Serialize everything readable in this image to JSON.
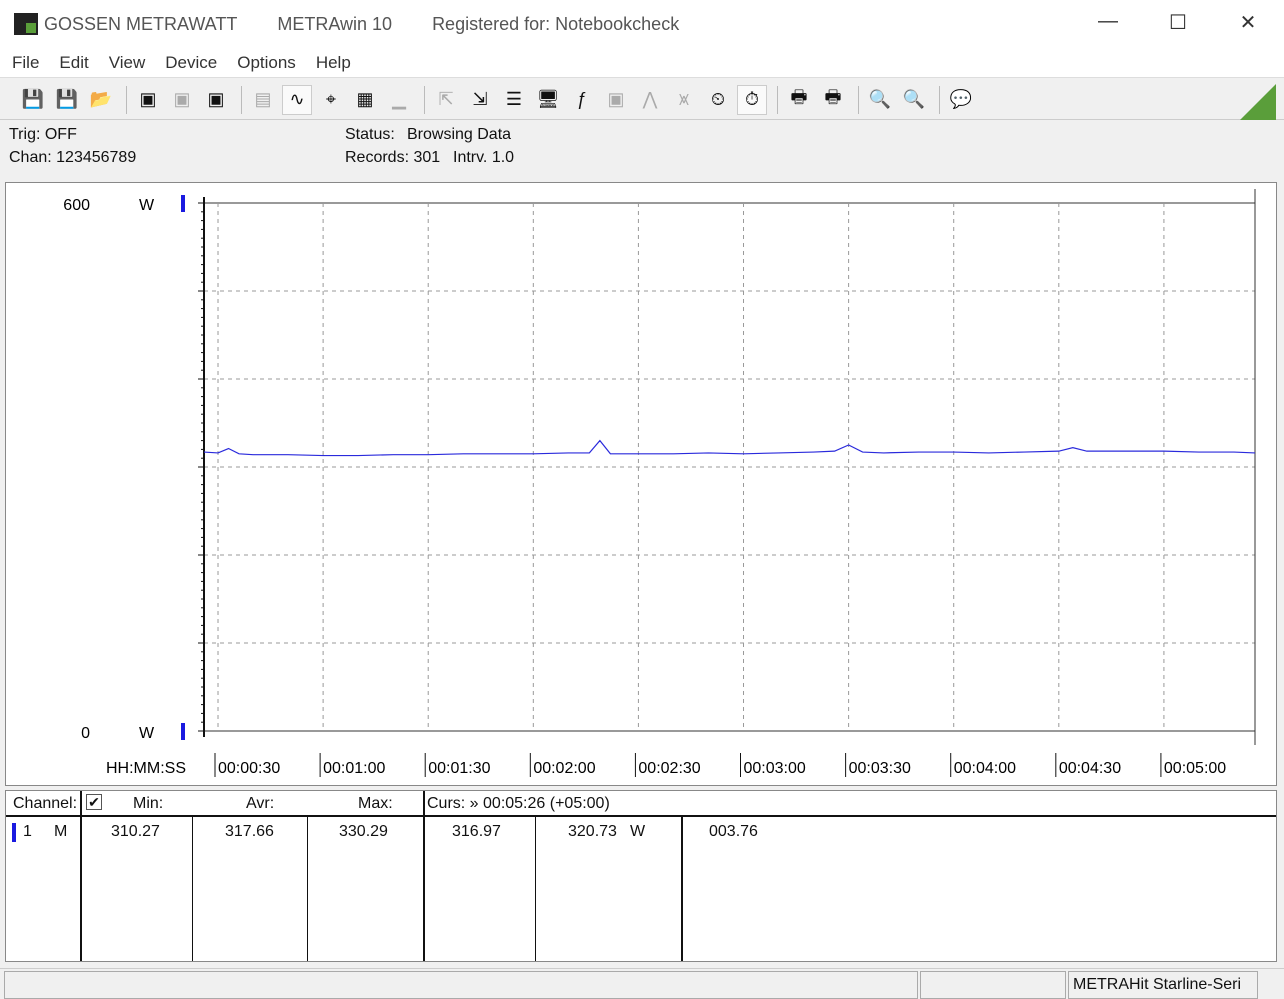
{
  "window": {
    "brand": "GOSSEN METRAWATT",
    "app": "METRAwin 10",
    "registered": "Registered for: Notebookcheck",
    "minimize": "—",
    "maximize": "☐",
    "close": "✕"
  },
  "menu": [
    "File",
    "Edit",
    "View",
    "Device",
    "Options",
    "Help"
  ],
  "toolbar": [
    {
      "icon": "save-export-icon",
      "glyph": "💾"
    },
    {
      "icon": "save-import-icon",
      "glyph": "💾"
    },
    {
      "icon": "open-folder-icon",
      "glyph": "📂"
    },
    "sep",
    {
      "icon": "device-read-icon",
      "glyph": "▣"
    },
    {
      "icon": "device-disabled-icon",
      "glyph": "▣",
      "disabled": true
    },
    {
      "icon": "memory-read-icon",
      "glyph": "▣"
    },
    "sep",
    {
      "icon": "digital-display-icon",
      "glyph": "▤",
      "disabled": true
    },
    {
      "icon": "waveform-view-icon",
      "glyph": "∿",
      "active": true
    },
    {
      "icon": "crosshair-icon",
      "glyph": "⌖"
    },
    {
      "icon": "table-view-icon",
      "glyph": "▦"
    },
    {
      "icon": "bar-view-icon",
      "glyph": "▁",
      "disabled": true
    },
    "sep",
    {
      "icon": "transfer-out-icon",
      "glyph": "⇱",
      "disabled": true
    },
    {
      "icon": "transfer-in-icon",
      "glyph": "⇲"
    },
    {
      "icon": "list-settings-icon",
      "glyph": "☰"
    },
    {
      "icon": "monitor-icon",
      "glyph": "🖥"
    },
    {
      "icon": "function-icon",
      "glyph": "ƒ"
    },
    {
      "icon": "meter-icon",
      "glyph": "▣",
      "disabled": true
    },
    {
      "icon": "signal-icon",
      "glyph": "⋀",
      "disabled": true
    },
    {
      "icon": "pulse-icon",
      "glyph": "⩙",
      "disabled": true
    },
    {
      "icon": "clock-settings-icon",
      "glyph": "⏲"
    },
    {
      "icon": "stopwatch-icon",
      "glyph": "⏱",
      "active": true
    },
    "sep",
    {
      "icon": "print-chart-icon",
      "glyph": "🖶"
    },
    {
      "icon": "print-icon",
      "glyph": "🖶"
    },
    "sep",
    {
      "icon": "zoom-in-icon",
      "glyph": "🔍"
    },
    {
      "icon": "zoom-out-icon",
      "glyph": "🔍"
    },
    "sep",
    {
      "icon": "comment-icon",
      "glyph": "💬"
    }
  ],
  "info": {
    "trig": "Trig: OFF",
    "chan": "Chan:  123456789",
    "status_label": "Status:",
    "status_value": "Browsing Data",
    "records": "Records: 301",
    "interval": "Intrv. 1.0"
  },
  "chart_data": {
    "type": "line",
    "ylim": [
      0,
      600
    ],
    "y_tick_labels": [
      "600",
      "0"
    ],
    "y_unit": "W",
    "xlabel": "HH:MM:SS",
    "xlim_seconds": [
      26,
      326
    ],
    "x_tick_labels": [
      "00:00:30",
      "00:01:00",
      "00:01:30",
      "00:02:00",
      "00:02:30",
      "00:03:00",
      "00:03:30",
      "00:04:00",
      "00:04:30",
      "00:05:00"
    ],
    "grid": true,
    "color": "#2a2adc",
    "series": [
      {
        "t": [
          26,
          30,
          33,
          36,
          40,
          50,
          60,
          70,
          80,
          90,
          100,
          110,
          120,
          130,
          136,
          139,
          142,
          150,
          160,
          170,
          180,
          190,
          200,
          206,
          210,
          214,
          220,
          230,
          240,
          250,
          260,
          270,
          274,
          278,
          290,
          300,
          310,
          320,
          326
        ],
        "values": [
          317,
          316,
          321,
          315,
          314,
          314,
          313,
          313,
          314,
          314,
          315,
          315,
          315,
          316,
          316,
          330,
          315,
          315,
          315,
          316,
          315,
          316,
          317,
          318,
          325,
          317,
          316,
          317,
          317,
          316,
          317,
          318,
          322,
          318,
          318,
          318,
          317,
          317,
          316
        ]
      }
    ]
  },
  "table": {
    "channel": "Channel:",
    "min": "Min:",
    "avr": "Avr:",
    "max": "Max:",
    "curs": "Curs: » 00:05:26 (+05:00)",
    "row": {
      "ch": "1",
      "mode": "M",
      "min": "310.27",
      "avr": "317.66",
      "max": "330.29",
      "cur1": "316.97",
      "cur2": "320.73",
      "unit": "W",
      "cur3": "003.76"
    }
  },
  "statusbar": {
    "device": "METRAHit Starline-Seri"
  }
}
